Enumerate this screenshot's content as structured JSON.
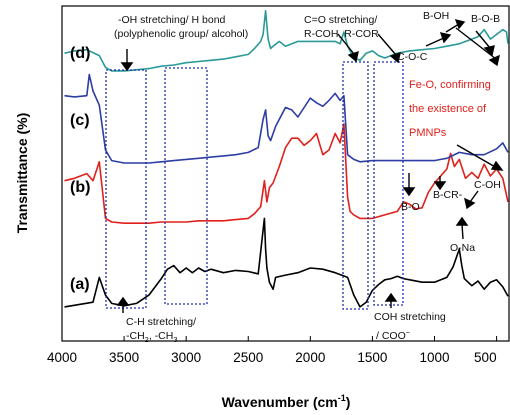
{
  "chart_data": {
    "type": "line",
    "xlabel": "Wavenumber (cm",
    "xlabel_sup": "-1",
    "xlabel_close": ")",
    "ylabel": "Transmittance (%)",
    "xlim": [
      4000,
      400
    ],
    "x_reversed": true,
    "x_ticks": [
      4000,
      3500,
      3000,
      2500,
      2000,
      1500,
      1000,
      500
    ],
    "grid": false,
    "legend": "none",
    "series": [
      {
        "name": "(a)",
        "color": "#000000",
        "x": [
          3980,
          3750,
          3700,
          3650,
          3600,
          3500,
          3400,
          3300,
          3200,
          3150,
          3100,
          3050,
          3000,
          2950,
          2900,
          2850,
          2800,
          2700,
          2600,
          2500,
          2420,
          2370,
          2360,
          2350,
          2330,
          2300,
          2280,
          2200,
          2100,
          2000,
          1900,
          1800,
          1700,
          1650,
          1600,
          1550,
          1500,
          1450,
          1400,
          1350,
          1300,
          1250,
          1200,
          1100,
          1000,
          900,
          850,
          800,
          780,
          760,
          700,
          650,
          600,
          550,
          500,
          450,
          400
        ],
        "y": [
          0.85,
          1.05,
          2.1,
          1.35,
          1.0,
          0.9,
          1.0,
          1.35,
          2.05,
          2.45,
          2.6,
          2.3,
          2.5,
          2.3,
          2.5,
          2.35,
          2.45,
          2.3,
          2.4,
          2.35,
          2.25,
          4.6,
          3.3,
          2.5,
          1.9,
          1.6,
          2.1,
          2.2,
          2.3,
          2.5,
          2.45,
          2.3,
          2.1,
          1.35,
          0.85,
          1.05,
          1.55,
          1.8,
          2.0,
          2.05,
          2.15,
          2.05,
          2.0,
          1.9,
          1.9,
          2.1,
          2.55,
          3.3,
          2.6,
          2.05,
          1.75,
          1.95,
          1.6,
          1.9,
          2.0,
          1.7,
          1.3
        ]
      },
      {
        "name": "(b)",
        "color": "#e0201b",
        "x": [
          3980,
          3900,
          3800,
          3750,
          3700,
          3650,
          3600,
          3500,
          3400,
          3300,
          3200,
          3100,
          3000,
          2900,
          2800,
          2700,
          2600,
          2500,
          2450,
          2400,
          2370,
          2350,
          2330,
          2300,
          2250,
          2200,
          2150,
          2100,
          2050,
          2000,
          1950,
          1900,
          1850,
          1800,
          1760,
          1730,
          1700,
          1680,
          1650,
          1600,
          1500,
          1400,
          1300,
          1250,
          1200,
          1150,
          1100,
          1050,
          1000,
          950,
          900,
          870,
          840,
          800,
          750,
          700,
          650,
          600,
          550,
          500,
          450,
          400
        ],
        "y": [
          6.2,
          6.3,
          6.5,
          6.2,
          7.0,
          4.6,
          4.45,
          4.4,
          4.4,
          4.4,
          4.45,
          4.45,
          4.45,
          4.5,
          4.5,
          4.5,
          4.55,
          4.6,
          4.8,
          5.1,
          6.2,
          5.3,
          5.9,
          6.1,
          6.8,
          7.6,
          8.0,
          8.0,
          7.7,
          7.9,
          8.2,
          7.3,
          7.5,
          8.2,
          7.8,
          8.6,
          5.5,
          4.9,
          4.75,
          4.6,
          4.6,
          4.75,
          4.9,
          5.3,
          5.2,
          5.0,
          5.05,
          5.7,
          6.1,
          6.4,
          6.7,
          7.35,
          6.8,
          7.1,
          6.3,
          6.55,
          6.3,
          6.9,
          6.4,
          6.7,
          6.3,
          5.3
        ]
      },
      {
        "name": "(c)",
        "color": "#2c3da3",
        "x": [
          3980,
          3900,
          3800,
          3780,
          3750,
          3700,
          3650,
          3600,
          3500,
          3400,
          3300,
          3200,
          3100,
          3000,
          2900,
          2800,
          2700,
          2600,
          2500,
          2420,
          2380,
          2360,
          2340,
          2320,
          2280,
          2200,
          2150,
          2100,
          2050,
          2000,
          1950,
          1900,
          1850,
          1800,
          1760,
          1730,
          1700,
          1650,
          1600,
          1500,
          1400,
          1300,
          1200,
          1100,
          1000,
          950,
          900,
          800,
          700,
          600,
          500,
          450,
          400
        ],
        "y": [
          9.8,
          9.75,
          9.8,
          10.7,
          10.0,
          9.4,
          7.5,
          7.05,
          6.95,
          6.95,
          6.95,
          7.0,
          7.05,
          7.1,
          7.15,
          7.2,
          7.25,
          7.3,
          7.4,
          7.6,
          8.8,
          9.2,
          8.1,
          7.9,
          8.5,
          9.3,
          9.2,
          8.9,
          9.3,
          9.7,
          9.5,
          9.35,
          9.6,
          9.9,
          9.6,
          9.8,
          7.3,
          7.1,
          7.0,
          7.05,
          7.05,
          7.05,
          7.05,
          7.05,
          7.05,
          7.1,
          7.15,
          7.4,
          7.3,
          7.3,
          7.55,
          7.8,
          7.4
        ]
      },
      {
        "name": "(d)",
        "color": "#2a9a99",
        "x": [
          3980,
          3900,
          3800,
          3700,
          3650,
          3600,
          3500,
          3400,
          3300,
          3200,
          3100,
          3000,
          2900,
          2800,
          2700,
          2600,
          2500,
          2450,
          2400,
          2380,
          2360,
          2340,
          2320,
          2300,
          2250,
          2200,
          2100,
          2000,
          1900,
          1800,
          1760,
          1730,
          1700,
          1650,
          1600,
          1550,
          1500,
          1450,
          1400,
          1350,
          1300,
          1250,
          1200,
          1100,
          1000,
          900,
          800,
          700,
          650,
          600,
          550,
          500,
          450,
          420,
          400
        ],
        "y": [
          11.6,
          11.7,
          11.75,
          11.5,
          11.0,
          10.85,
          10.85,
          10.9,
          10.95,
          11.05,
          11.1,
          11.2,
          11.25,
          11.3,
          11.35,
          11.45,
          11.55,
          11.8,
          12.1,
          12.4,
          13.4,
          12.2,
          11.8,
          11.9,
          12.1,
          11.9,
          12.1,
          12.1,
          12.1,
          12.1,
          12.0,
          12.5,
          11.9,
          11.4,
          11.3,
          11.6,
          11.7,
          11.5,
          11.4,
          11.5,
          11.6,
          11.65,
          11.7,
          11.75,
          11.8,
          11.9,
          12.0,
          12.2,
          12.3,
          12.6,
          12.2,
          12.4,
          12.6,
          12.5,
          12.0
        ]
      }
    ],
    "curve_labels": [
      "(a)",
      "(b)",
      "(c)",
      "(d)"
    ],
    "annotations": {
      "oh": "-OH stretching/ H bond",
      "oh2": "(polyphenolic group/ alcohol)",
      "co": "C=O stretching/",
      "co2": "R-COH, R-COR",
      "boh": "B-OH",
      "bob": "B-O-B",
      "coc": "C-O-C",
      "feo1": "Fe-O, confirming",
      "feo2": "the existence of",
      "feo3": "PMNPs",
      "bcr": "B-CR-",
      "bo": "B-O",
      "coh": "C-OH",
      "ona": "O-Na",
      "ch1": "C-H stretching/",
      "ch2": "-CH",
      "ch2b": "2",
      "ch2c": ", -CH",
      "ch2d": "3",
      "cohstr": "COH stretching",
      "coo": "/ COO",
      "coo_sup": "−"
    }
  }
}
